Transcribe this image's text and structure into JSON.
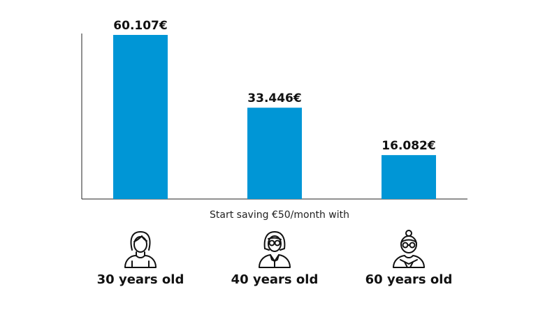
{
  "chart_data": {
    "type": "bar",
    "categories": [
      "30 years old",
      "40 years old",
      "60 years old"
    ],
    "values": [
      60107,
      33446,
      16082
    ],
    "value_labels": [
      "60.107€",
      "33.446€",
      "16.082€"
    ],
    "xlabel": "Start saving €50/month with",
    "ylim": [
      0,
      60107
    ],
    "bar_color": "#0096d6",
    "grid": false
  },
  "icons": [
    "young-woman-icon",
    "middle-aged-woman-icon",
    "elderly-woman-icon"
  ]
}
